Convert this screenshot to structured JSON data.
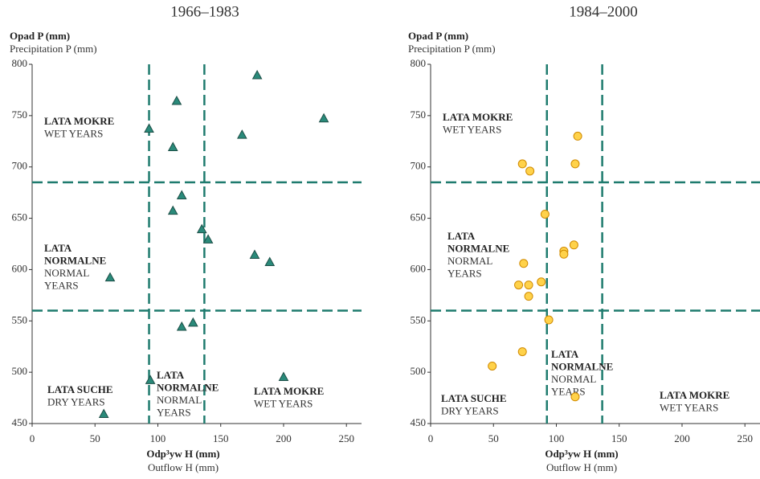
{
  "chart_data": [
    {
      "type": "scatter",
      "title": "1966–1983",
      "y_label": "Opad P (mm)",
      "y_label_en": "Precipitation P (mm)",
      "x_label": "Odp³yw H (mm)",
      "x_label_en": "Outflow H (mm)",
      "marker": "triangle",
      "color": "#2a8a7a",
      "edge": "#1d4f47",
      "x": [
        93,
        115,
        112,
        179,
        167,
        232,
        119,
        112,
        135,
        140,
        177,
        189,
        62,
        128,
        119,
        94,
        200,
        57
      ],
      "values": [
        737,
        764,
        719,
        789,
        731,
        747,
        672,
        657,
        639,
        629,
        614,
        607,
        592,
        548,
        544,
        492,
        495,
        459
      ],
      "xlim": [
        0,
        262
      ],
      "ylim": [
        450,
        800
      ],
      "xticks": [
        0,
        50,
        100,
        150,
        200,
        250
      ],
      "yticks": [
        450,
        500,
        550,
        600,
        650,
        700,
        750,
        800
      ],
      "vlines": [
        93,
        137
      ],
      "hlines": [
        685,
        560
      ],
      "line_color": "#1e7b6e",
      "annotations": [
        {
          "pl": [
            "LATA MOKRE"
          ],
          "en": [
            "WET YEARS"
          ]
        },
        {
          "pl": [
            "LATA",
            "NORMALNE"
          ],
          "en": [
            "NORMAL",
            "YEARS"
          ]
        },
        {
          "pl": [
            "LATA SUCHE"
          ],
          "en": [
            "DRY YEARS"
          ]
        },
        {
          "pl": [
            "LATA",
            "NORMALNE"
          ],
          "en": [
            "NORMAL",
            "YEARS"
          ]
        },
        {
          "pl": [
            "LATA MOKRE"
          ],
          "en": [
            "WET YEARS"
          ]
        }
      ]
    },
    {
      "type": "scatter",
      "title": "1984–2000",
      "y_label": "Opad P (mm)",
      "y_label_en": "Precipitation P (mm)",
      "x_label": "Odp³yw H (mm)",
      "x_label_en": "Outflow H (mm)",
      "marker": "circle",
      "color": "#ffd24a",
      "edge": "#d08a00",
      "x": [
        73,
        79,
        117,
        115,
        91,
        114,
        106,
        106,
        74,
        70,
        78,
        88,
        78,
        94,
        73,
        49,
        115
      ],
      "values": [
        703,
        696,
        730,
        703,
        654,
        624,
        618,
        615,
        606,
        585,
        585,
        588,
        574,
        551,
        520,
        506,
        476
      ],
      "xlim": [
        0,
        262
      ],
      "ylim": [
        450,
        800
      ],
      "xticks": [
        0,
        50,
        100,
        150,
        200,
        250
      ],
      "yticks": [
        450,
        500,
        550,
        600,
        650,
        700,
        750,
        800
      ],
      "vlines": [
        92.5,
        136.5
      ],
      "hlines": [
        685,
        560
      ],
      "line_color": "#1e7b6e",
      "annotations": [
        {
          "pl": [
            "LATA MOKRE"
          ],
          "en": [
            "WET YEARS"
          ]
        },
        {
          "pl": [
            "LATA",
            "NORMALNE"
          ],
          "en": [
            "NORMAL",
            "YEARS"
          ]
        },
        {
          "pl": [
            "LATA SUCHE"
          ],
          "en": [
            "DRY YEARS"
          ]
        },
        {
          "pl": [
            "LATA",
            "NORMALNE"
          ],
          "en": [
            "NORMAL",
            "YEARS"
          ]
        },
        {
          "pl": [
            "LATA MOKRE"
          ],
          "en": [
            "WET YEARS"
          ]
        }
      ]
    }
  ]
}
